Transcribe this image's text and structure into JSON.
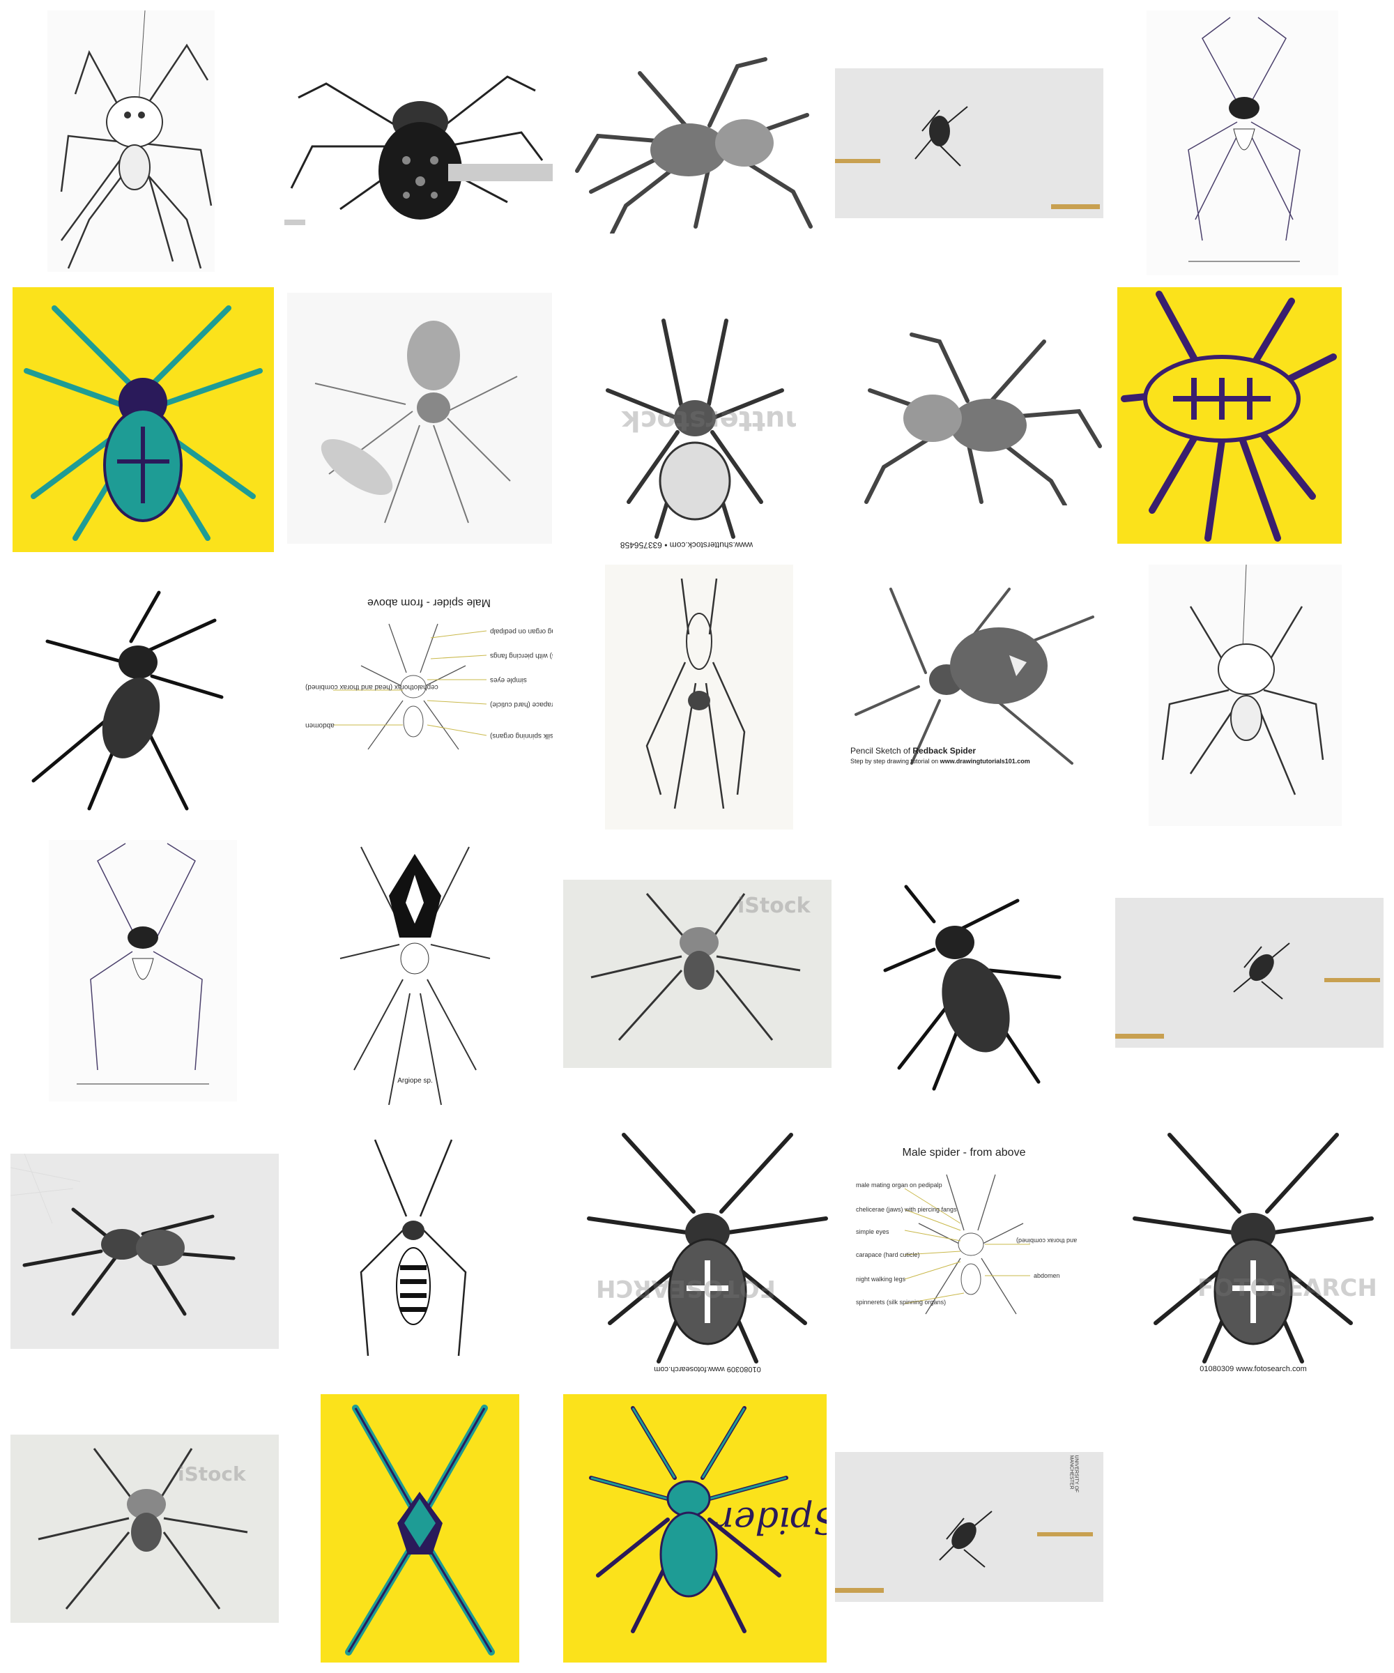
{
  "grid": {
    "title": "",
    "captions": {
      "shutterstock_footer": "www.shutterstock.com • 633756458",
      "shutterstock_wm": "shutterstock",
      "male_title": "Male spider - from above",
      "male_labels": [
        "male mating organ on pedipalp",
        "chelicerae (jaws) with piercing fangs",
        "simple eyes",
        "carapace (hard cuticle)",
        "night walking legs",
        "spinnerets (silk spinning organs)",
        "cephalothorax (head and thorax combined)",
        "abdomen"
      ],
      "redback_prefix": "Pencil Sketch of ",
      "redback_bold": "Redback Spider",
      "redback_sub_prefix": "Step by step drawing tutorial on ",
      "redback_sub_bold": "www.drawingtutorials101.com",
      "argiope": "Argiope sp.",
      "fotosearch_caption": "01080309  www.fotosearch.com",
      "fotosearch_wm": "FOTOSEARCH",
      "istock_wm": "iStock",
      "spider_word": "Spider",
      "manchester": "UNIVERSITY OF MANCHESTER"
    }
  }
}
